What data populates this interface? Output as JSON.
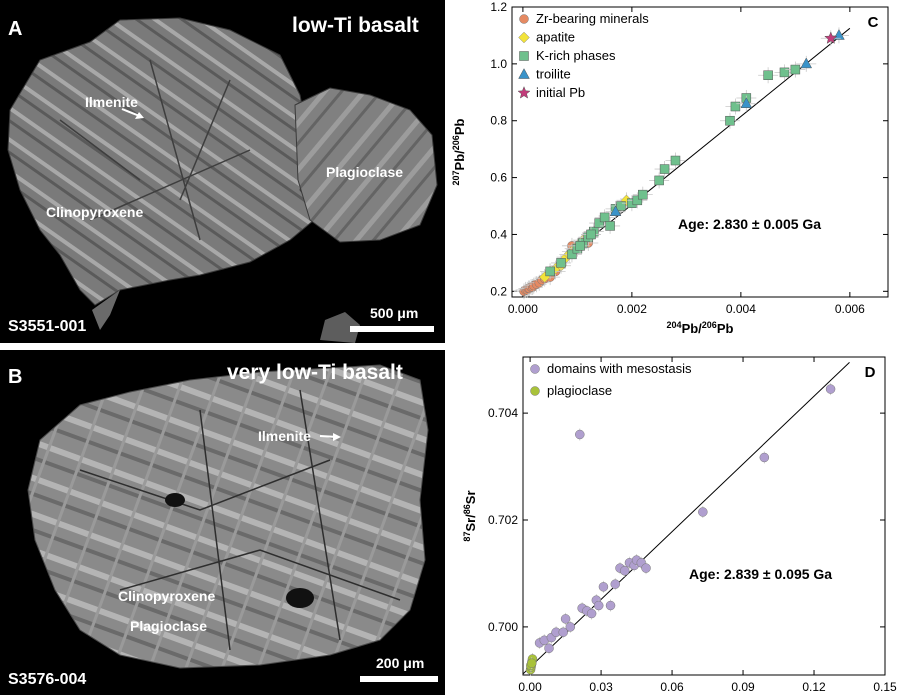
{
  "panelA": {
    "label": "A",
    "title": "low-Ti basalt",
    "minerals": {
      "ilmenite": "Ilmenite",
      "plagioclase": "Plagioclase",
      "clinopyroxene": "Clinopyroxene"
    },
    "sample": "S3551-001",
    "scale": "500 μm"
  },
  "panelB": {
    "label": "B",
    "title": "very low-Ti basalt",
    "minerals": {
      "ilmenite": "Ilmenite",
      "clinopyroxene": "Clinopyroxene",
      "plagioclase": "Plagioclase"
    },
    "sample": "S3576-004",
    "scale": "200 μm"
  },
  "chart_data": [
    {
      "type": "scatter",
      "panel_label": "C",
      "xlabel_sup1": "204",
      "xlabel_mid": "Pb/",
      "xlabel_sup2": "206",
      "xlabel_end": "Pb",
      "ylabel_sup1": "207",
      "ylabel_mid": "Pb/",
      "ylabel_sup2": "206",
      "ylabel_end": "Pb",
      "xlim": [
        -0.0002,
        0.0067
      ],
      "ylim": [
        0.18,
        1.2
      ],
      "xticks": [
        0,
        0.002,
        0.004,
        0.006
      ],
      "xtick_labels": [
        "0.000",
        "0.002",
        "0.004",
        "0.006"
      ],
      "yticks": [
        0.2,
        0.4,
        0.6,
        0.8,
        1.0,
        1.2
      ],
      "ytick_labels": [
        "0.2",
        "0.4",
        "0.6",
        "0.8",
        "1.0",
        "1.2"
      ],
      "annotation": "Age: 2.830 ± 0.005 Ga",
      "legend_position": "top-left",
      "fit_line": {
        "x": [
          0.0,
          0.006
        ],
        "y": [
          0.195,
          1.125
        ]
      },
      "series": [
        {
          "name": "Zr-bearing minerals",
          "marker": "circle",
          "color": "#e58a63",
          "x": [
            2e-05,
            5e-05,
            8e-05,
            0.0001,
            0.00012,
            0.00015,
            0.00018,
            0.0002,
            0.00025,
            0.0003,
            0.00035,
            0.0004,
            0.0005,
            0.0006,
            0.0009,
            0.0012
          ],
          "y": [
            0.2,
            0.205,
            0.205,
            0.21,
            0.21,
            0.215,
            0.215,
            0.22,
            0.225,
            0.23,
            0.24,
            0.245,
            0.25,
            0.27,
            0.36,
            0.37
          ]
        },
        {
          "name": "apatite",
          "marker": "diamond",
          "color": "#f2e33a",
          "x": [
            0.0004,
            0.0005,
            0.0006,
            0.0007,
            0.0008,
            0.0009,
            0.001,
            0.0011,
            0.0012,
            0.00125,
            0.0013,
            0.00085,
            0.00095,
            0.0019,
            0.0007
          ],
          "y": [
            0.25,
            0.27,
            0.28,
            0.3,
            0.32,
            0.34,
            0.36,
            0.38,
            0.39,
            0.4,
            0.41,
            0.33,
            0.35,
            0.52,
            0.29
          ]
        },
        {
          "name": "K-rich phases",
          "marker": "square",
          "color": "#6fc08d",
          "x": [
            0.0005,
            0.0007,
            0.0009,
            0.001,
            0.0011,
            0.0012,
            0.0013,
            0.0014,
            0.0015,
            0.0016,
            0.0017,
            0.0018,
            0.002,
            0.0021,
            0.0022,
            0.0025,
            0.0026,
            0.0028,
            0.0038,
            0.0039,
            0.0041,
            0.0045,
            0.0048,
            0.005,
            0.00105,
            0.00125
          ],
          "y": [
            0.27,
            0.3,
            0.33,
            0.35,
            0.37,
            0.39,
            0.41,
            0.44,
            0.46,
            0.43,
            0.49,
            0.5,
            0.51,
            0.52,
            0.54,
            0.59,
            0.63,
            0.66,
            0.8,
            0.85,
            0.88,
            0.96,
            0.97,
            0.98,
            0.36,
            0.4
          ]
        },
        {
          "name": "troilite",
          "marker": "triangle",
          "color": "#3a93c9",
          "x": [
            0.0017,
            0.0041,
            0.0052,
            0.0058
          ],
          "y": [
            0.48,
            0.86,
            1.0,
            1.1
          ]
        },
        {
          "name": "initial Pb",
          "marker": "star",
          "color": "#c23b7a",
          "x": [
            0.00565
          ],
          "y": [
            1.09
          ]
        }
      ]
    },
    {
      "type": "scatter",
      "panel_label": "D",
      "xlabel_sup1": "87",
      "xlabel_mid": "Rb/",
      "xlabel_sup2": "86",
      "xlabel_end": "Sr",
      "ylabel_sup1": "87",
      "ylabel_mid": "Sr/",
      "ylabel_sup2": "86",
      "ylabel_end": "Sr",
      "xlim": [
        -0.003,
        0.15
      ],
      "ylim": [
        0.6991,
        0.70505
      ],
      "xticks": [
        0,
        0.03,
        0.06,
        0.09,
        0.12,
        0.15
      ],
      "xtick_labels": [
        "0.00",
        "0.03",
        "0.06",
        "0.09",
        "0.12",
        "0.15"
      ],
      "yticks": [
        0.7,
        0.702,
        0.704
      ],
      "ytick_labels": [
        "0.700",
        "0.702",
        "0.704"
      ],
      "annotation": "Age: 2.839 ± 0.095 Ga",
      "legend_position": "top-left",
      "fit_line": {
        "x": [
          -0.003,
          0.135
        ],
        "y": [
          0.69912,
          0.70495
        ]
      },
      "series": [
        {
          "name": "domains with mesostasis",
          "marker": "circle",
          "color": "#b09fcf",
          "x": [
            0.004,
            0.006,
            0.008,
            0.009,
            0.011,
            0.014,
            0.015,
            0.017,
            0.021,
            0.022,
            0.024,
            0.026,
            0.028,
            0.029,
            0.031,
            0.034,
            0.036,
            0.038,
            0.04,
            0.042,
            0.044,
            0.045,
            0.047,
            0.049,
            0.073,
            0.099,
            0.127
          ],
          "y": [
            0.6997,
            0.69975,
            0.6996,
            0.6998,
            0.6999,
            0.6999,
            0.70015,
            0.7,
            0.7036,
            0.70035,
            0.7003,
            0.70025,
            0.7005,
            0.7004,
            0.70075,
            0.7004,
            0.7008,
            0.7011,
            0.70105,
            0.7012,
            0.70115,
            0.70125,
            0.7012,
            0.7011,
            0.70215,
            0.70317,
            0.70445
          ]
        },
        {
          "name": "plagioclase",
          "marker": "circle",
          "color": "#a9c23a",
          "x": [
            0.0002,
            0.0004,
            0.0006,
            0.0008,
            0.001,
            0.0003,
            0.0007
          ],
          "y": [
            0.6992,
            0.69925,
            0.6993,
            0.69935,
            0.6994,
            0.69928,
            0.69932
          ]
        }
      ]
    }
  ]
}
